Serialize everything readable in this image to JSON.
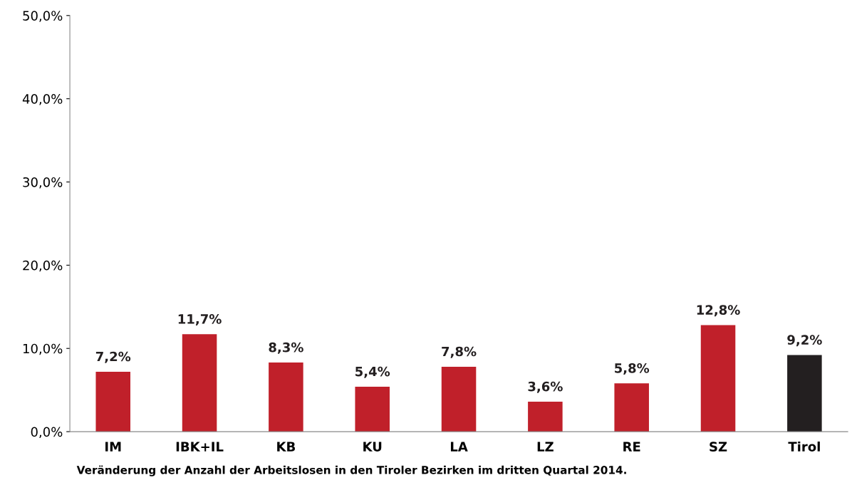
{
  "chart_data": {
    "type": "bar",
    "categories": [
      "IM",
      "IBK+IL",
      "KB",
      "KU",
      "LA",
      "LZ",
      "RE",
      "SZ",
      "Tirol"
    ],
    "values": [
      7.2,
      11.7,
      8.3,
      5.4,
      7.8,
      3.6,
      5.8,
      12.8,
      9.2
    ],
    "colors": [
      "#c0202a",
      "#c0202a",
      "#c0202a",
      "#c0202a",
      "#c0202a",
      "#c0202a",
      "#c0202a",
      "#c0202a",
      "#231f20"
    ],
    "value_labels": [
      "7,2%",
      "11,7%",
      "8,3%",
      "5,4%",
      "7,8%",
      "3,6%",
      "5,8%",
      "12,8%",
      "9,2%"
    ],
    "ylim": [
      0,
      50
    ],
    "yticks": [
      {
        "value": 0,
        "label": "0,0%"
      },
      {
        "value": 10,
        "label": "10,0%"
      },
      {
        "value": 20,
        "label": "20,0%"
      },
      {
        "value": 30,
        "label": "30,0%"
      },
      {
        "value": 40,
        "label": "40,0%"
      },
      {
        "value": 50,
        "label": "50,0%"
      }
    ],
    "grid": false,
    "legend": false,
    "annotations": [
      "Veränderung der Anzahl der Arbeitslosen in den Tiroler Bezirken im dritten Quartal 2014."
    ]
  }
}
